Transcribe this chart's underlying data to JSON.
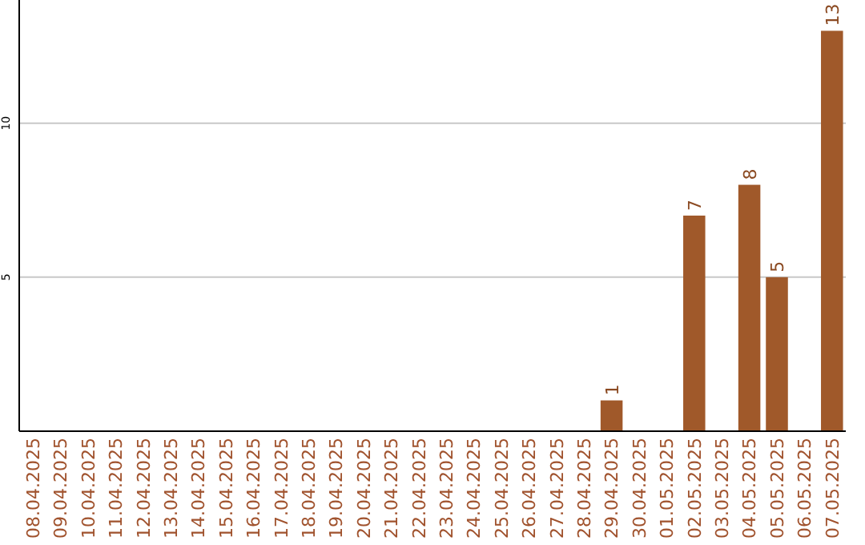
{
  "chart_data": {
    "type": "bar",
    "categories": [
      "08.04.2025",
      "09.04.2025",
      "10.04.2025",
      "11.04.2025",
      "12.04.2025",
      "13.04.2025",
      "14.04.2025",
      "15.04.2025",
      "16.04.2025",
      "17.04.2025",
      "18.04.2025",
      "19.04.2025",
      "20.04.2025",
      "21.04.2025",
      "22.04.2025",
      "23.04.2025",
      "24.04.2025",
      "25.04.2025",
      "26.04.2025",
      "27.04.2025",
      "28.04.2025",
      "29.04.2025",
      "30.04.2025",
      "01.05.2025",
      "02.05.2025",
      "03.05.2025",
      "04.05.2025",
      "05.05.2025",
      "06.05.2025",
      "07.05.2025"
    ],
    "values": [
      0,
      0,
      0,
      0,
      0,
      0,
      0,
      0,
      0,
      0,
      0,
      0,
      0,
      0,
      0,
      0,
      0,
      0,
      0,
      0,
      0,
      1,
      0,
      0,
      7,
      0,
      8,
      5,
      0,
      13
    ],
    "value_labels": [
      null,
      null,
      null,
      null,
      null,
      null,
      null,
      null,
      null,
      null,
      null,
      null,
      null,
      null,
      null,
      null,
      null,
      null,
      null,
      null,
      null,
      "1",
      null,
      null,
      "7",
      null,
      "8",
      "5",
      null,
      "13"
    ],
    "color": "#a0592a",
    "ylim": [
      0,
      14
    ],
    "yticks": [
      5,
      10
    ],
    "grid": "y"
  }
}
